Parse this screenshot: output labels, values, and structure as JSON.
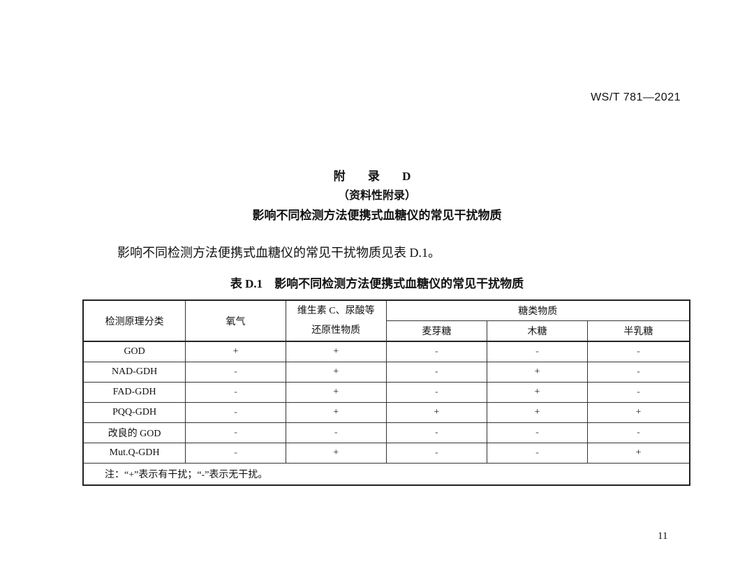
{
  "header": {
    "standard_number": "WS/T 781—2021"
  },
  "appendix": {
    "title": "附 录 D",
    "subtitle": "（资料性附录）",
    "heading": "影响不同检测方法便携式血糖仪的常见干扰物质"
  },
  "intro": "影响不同检测方法便携式血糖仪的常见干扰物质见表 D.1。",
  "table": {
    "caption": "表 D.1　影响不同检测方法便携式血糖仪的常见干扰物质",
    "headers": {
      "method": "检测原理分类",
      "oxygen": "氧气",
      "reducing_line1": "维生素 C、尿酸等",
      "reducing_line2": "还原性物质",
      "sugars": "糖类物质",
      "maltose": "麦芽糖",
      "xylose": "木糖",
      "galactose": "半乳糖"
    },
    "rows": [
      {
        "method": "GOD",
        "cells": [
          "+",
          "+",
          "-",
          "-",
          "-"
        ]
      },
      {
        "method": "NAD-GDH",
        "cells": [
          "-",
          "+",
          "-",
          "+",
          "-"
        ]
      },
      {
        "method": "FAD-GDH",
        "cells": [
          "-",
          "+",
          "-",
          "+",
          "-"
        ]
      },
      {
        "method": "PQQ-GDH",
        "cells": [
          "-",
          "+",
          "+",
          "+",
          "+"
        ]
      },
      {
        "method": "改良的 GOD",
        "cells": [
          "-",
          "-",
          "-",
          "-",
          "-"
        ]
      },
      {
        "method": "Mut.Q-GDH",
        "cells": [
          "-",
          "+",
          "-",
          "-",
          "+"
        ]
      }
    ],
    "note": "注：“+”表示有干扰；“-”表示无干扰。"
  },
  "page_number": "11"
}
